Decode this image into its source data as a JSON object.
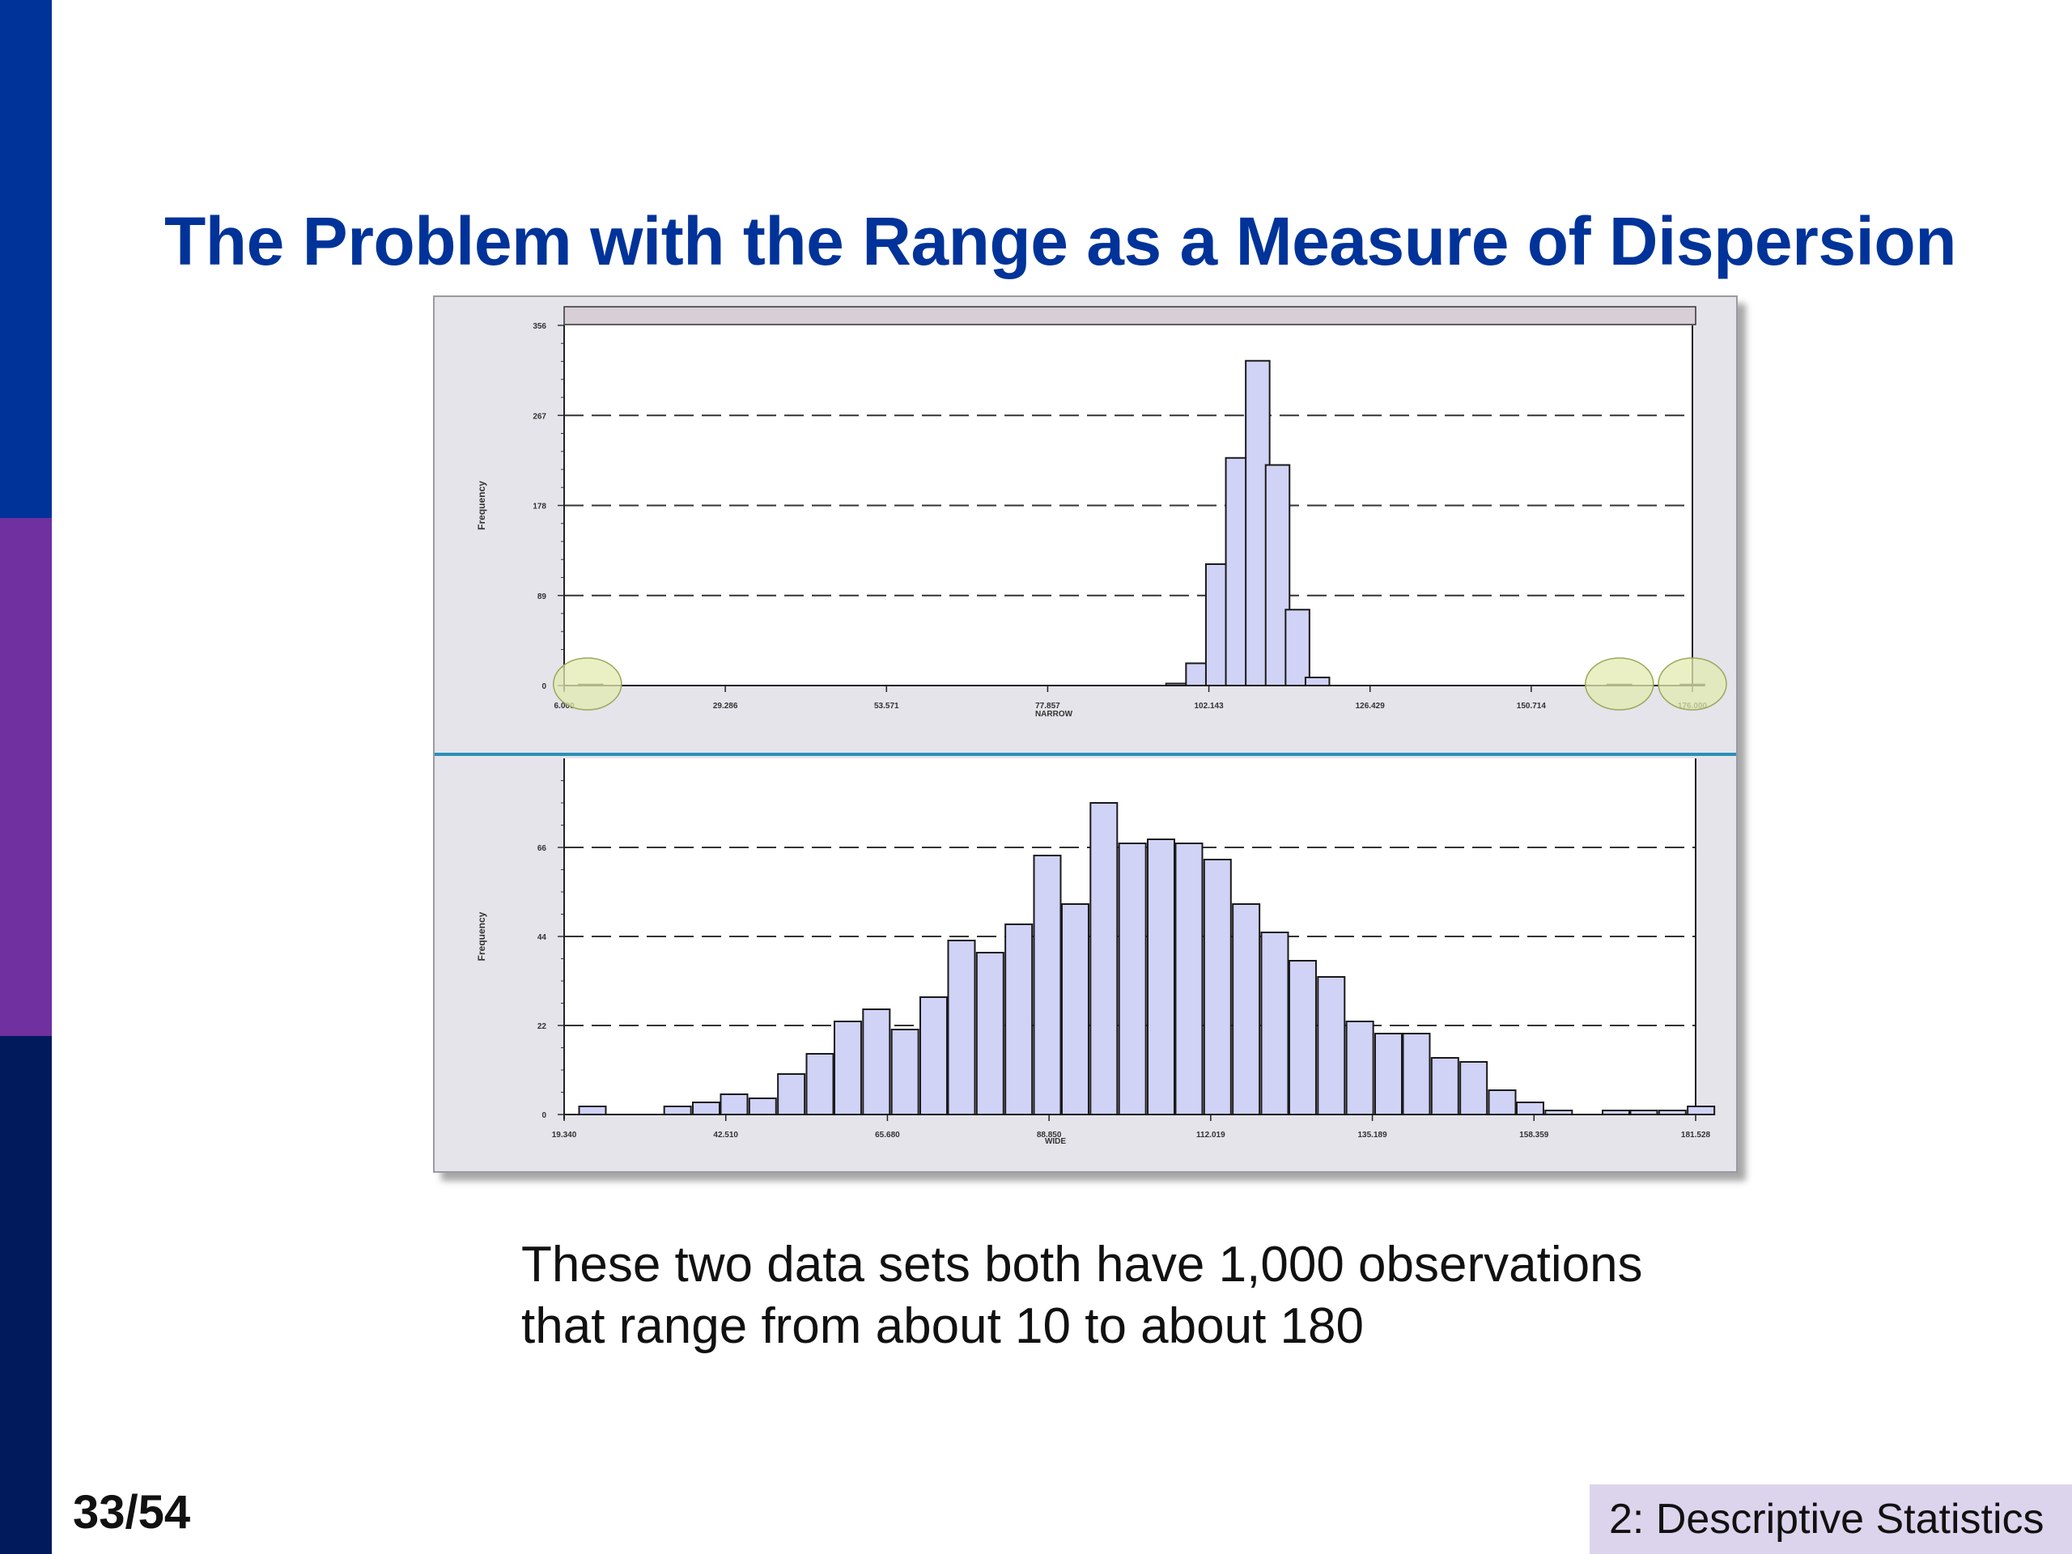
{
  "colors": {
    "sidebar_top": "#003399",
    "sidebar_mid": "#7030a0",
    "sidebar_bottom": "#001a5c",
    "title": "#003399",
    "bar_fill": "#d0d2f6",
    "bar_stroke": "#1a1a1a",
    "highlight_ellipse": "#e3ebb0"
  },
  "slide": {
    "title": "The Problem with the Range as a Measure of Dispersion",
    "caption_line1": "These two data sets both have 1,000 observations",
    "caption_line2": "that range from about 10 to about 180",
    "page_number": "33/54",
    "section": "2: Descriptive Statistics"
  },
  "chart_data": [
    {
      "type": "bar",
      "xlabel": "NARROW",
      "ylabel": "Frequency",
      "xtick_labels": [
        "6.000",
        "29.286",
        "53.571",
        "77.857",
        "102.143",
        "126.429",
        "150.714",
        "176.000"
      ],
      "ytick_labels": [
        "0",
        "89",
        "178",
        "267",
        "356"
      ],
      "ylim": [
        0,
        356
      ],
      "grid": "dashed horizontal",
      "bins": [
        {
          "x": 10,
          "value": 1
        },
        {
          "x": 98.5,
          "value": 2
        },
        {
          "x": 101.5,
          "value": 22
        },
        {
          "x": 104.5,
          "value": 120
        },
        {
          "x": 107.5,
          "value": 225
        },
        {
          "x": 110.5,
          "value": 321
        },
        {
          "x": 113.5,
          "value": 218
        },
        {
          "x": 116.5,
          "value": 75
        },
        {
          "x": 119.5,
          "value": 8
        },
        {
          "x": 165,
          "value": 1
        },
        {
          "x": 176,
          "value": 1
        }
      ],
      "highlighted_regions": [
        "left extreme (about 10)",
        "right extremes (about 165 and 176)"
      ]
    },
    {
      "type": "bar",
      "xlabel": "WIDE",
      "ylabel": "Frequency",
      "xtick_labels": [
        "19.340",
        "42.510",
        "65.680",
        "88.850",
        "112.019",
        "135.189",
        "158.359",
        "181.528"
      ],
      "ytick_labels": [
        "0",
        "22",
        "44",
        "66"
      ],
      "ylim": [
        0,
        88
      ],
      "grid": "dashed horizontal",
      "bins": [
        {
          "x": 23.4,
          "value": 2
        },
        {
          "x": 35.6,
          "value": 2
        },
        {
          "x": 39.7,
          "value": 3
        },
        {
          "x": 43.7,
          "value": 5
        },
        {
          "x": 47.8,
          "value": 4
        },
        {
          "x": 51.9,
          "value": 10
        },
        {
          "x": 56.0,
          "value": 15
        },
        {
          "x": 60.0,
          "value": 23
        },
        {
          "x": 64.1,
          "value": 26
        },
        {
          "x": 68.2,
          "value": 21
        },
        {
          "x": 72.3,
          "value": 29
        },
        {
          "x": 76.3,
          "value": 43
        },
        {
          "x": 80.4,
          "value": 40
        },
        {
          "x": 84.5,
          "value": 47
        },
        {
          "x": 88.6,
          "value": 64
        },
        {
          "x": 92.6,
          "value": 52
        },
        {
          "x": 96.7,
          "value": 77
        },
        {
          "x": 100.8,
          "value": 67
        },
        {
          "x": 104.9,
          "value": 68
        },
        {
          "x": 108.9,
          "value": 67
        },
        {
          "x": 113.0,
          "value": 63
        },
        {
          "x": 117.1,
          "value": 52
        },
        {
          "x": 121.2,
          "value": 45
        },
        {
          "x": 125.2,
          "value": 38
        },
        {
          "x": 129.3,
          "value": 34
        },
        {
          "x": 133.4,
          "value": 23
        },
        {
          "x": 137.5,
          "value": 20
        },
        {
          "x": 141.5,
          "value": 20
        },
        {
          "x": 145.6,
          "value": 14
        },
        {
          "x": 149.7,
          "value": 13
        },
        {
          "x": 153.8,
          "value": 6
        },
        {
          "x": 157.8,
          "value": 3
        },
        {
          "x": 161.9,
          "value": 1
        },
        {
          "x": 170.1,
          "value": 1
        },
        {
          "x": 174.1,
          "value": 1
        },
        {
          "x": 178.2,
          "value": 1
        },
        {
          "x": 182.3,
          "value": 2
        }
      ]
    }
  ]
}
